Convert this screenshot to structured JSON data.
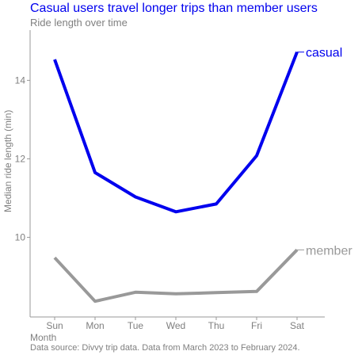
{
  "colors": {
    "title": "#0000ee",
    "text_gray": "#7f7f7f",
    "axis": "#999999",
    "casual": "#0000ee",
    "member": "#999999"
  },
  "chart_data": {
    "type": "line",
    "title": "Casual users travel longer trips than member users",
    "subtitle": "Ride length over time",
    "xlabel": "Month",
    "ylabel": "Median ride length (min)",
    "caption": "Data source: Divvy trip data. Data from March 2023 to February 2024.",
    "categories": [
      "Sun",
      "Mon",
      "Tue",
      "Wed",
      "Thu",
      "Fri",
      "Sat"
    ],
    "series": [
      {
        "name": "casual",
        "values": [
          14.53,
          11.65,
          11.03,
          10.65,
          10.85,
          12.08,
          14.72
        ]
      },
      {
        "name": "member",
        "values": [
          9.48,
          8.37,
          8.6,
          8.56,
          8.59,
          8.62,
          9.68
        ]
      }
    ],
    "yticks": [
      10,
      12,
      14
    ],
    "ylim": [
      7.97,
      15.28
    ],
    "grid": false,
    "legend": "direct labels at line ends"
  }
}
